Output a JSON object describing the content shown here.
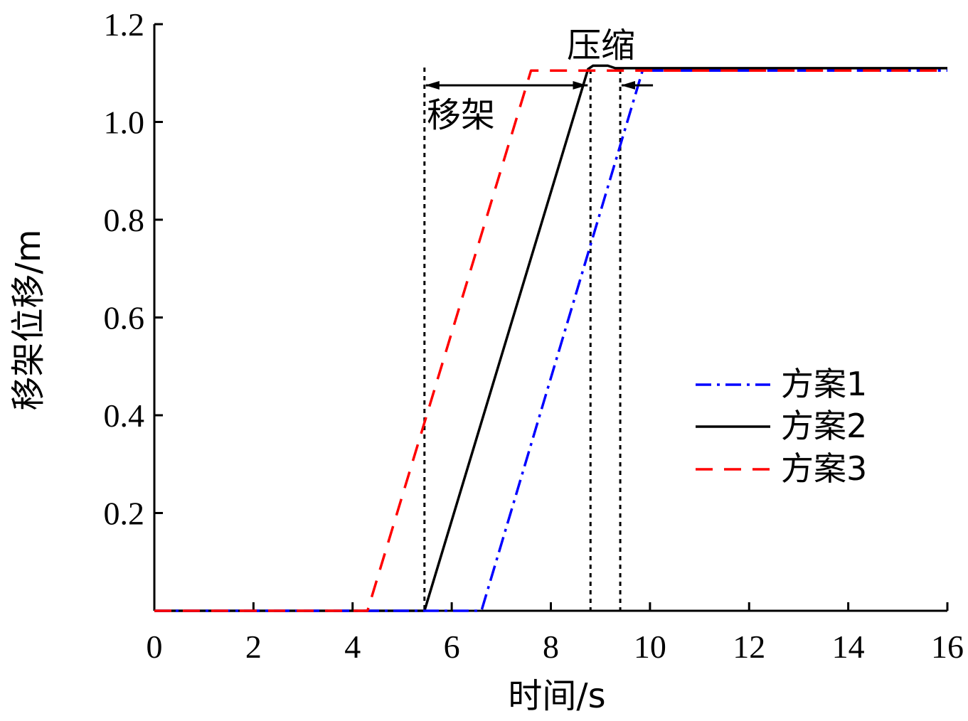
{
  "chart_data": {
    "type": "line",
    "xlabel": "时间/s",
    "ylabel": "移架位移/m",
    "xlim": [
      0,
      16
    ],
    "ylim": [
      0,
      1.2
    ],
    "x_ticks": [
      0,
      2,
      4,
      6,
      8,
      10,
      12,
      14,
      16
    ],
    "x_tick_labels": [
      "0",
      "2",
      "4",
      "6",
      "8",
      "10",
      "12",
      "14",
      "16"
    ],
    "y_ticks": [
      0.2,
      0.4,
      0.6,
      0.8,
      1.0,
      1.2
    ],
    "y_tick_labels": [
      "0.2",
      "0.4",
      "0.6",
      "0.8",
      "1.0",
      "1.2"
    ],
    "grid": false,
    "legend_position": "center-right",
    "series": [
      {
        "name": "方案1",
        "color": "#0000ff",
        "dash": "dashdot",
        "x": [
          0,
          6.6,
          9.85,
          16
        ],
        "y": [
          0,
          0,
          1.105,
          1.105
        ]
      },
      {
        "name": "方案2",
        "color": "#000000",
        "dash": "solid",
        "x": [
          0,
          5.45,
          8.75,
          8.85,
          9.15,
          9.3,
          16
        ],
        "y": [
          0,
          0,
          1.108,
          1.115,
          1.115,
          1.11,
          1.11
        ]
      },
      {
        "name": "方案3",
        "color": "#ff0000",
        "dash": "dashed",
        "x": [
          0,
          4.3,
          7.6,
          16
        ],
        "y": [
          0,
          0,
          1.105,
          1.105
        ]
      }
    ],
    "reference_lines": {
      "x": [
        5.45,
        8.8,
        9.4
      ],
      "style": "dotted",
      "color": "#000000"
    },
    "annotations": [
      {
        "text": "移架",
        "arrow_from_x": 5.45,
        "arrow_to_x": 8.8,
        "arrow_y": 1.075
      },
      {
        "text": "压缩",
        "arrow_from_x": 9.4,
        "arrow_to_x": 8.8,
        "arrow_y": 1.075
      }
    ]
  }
}
